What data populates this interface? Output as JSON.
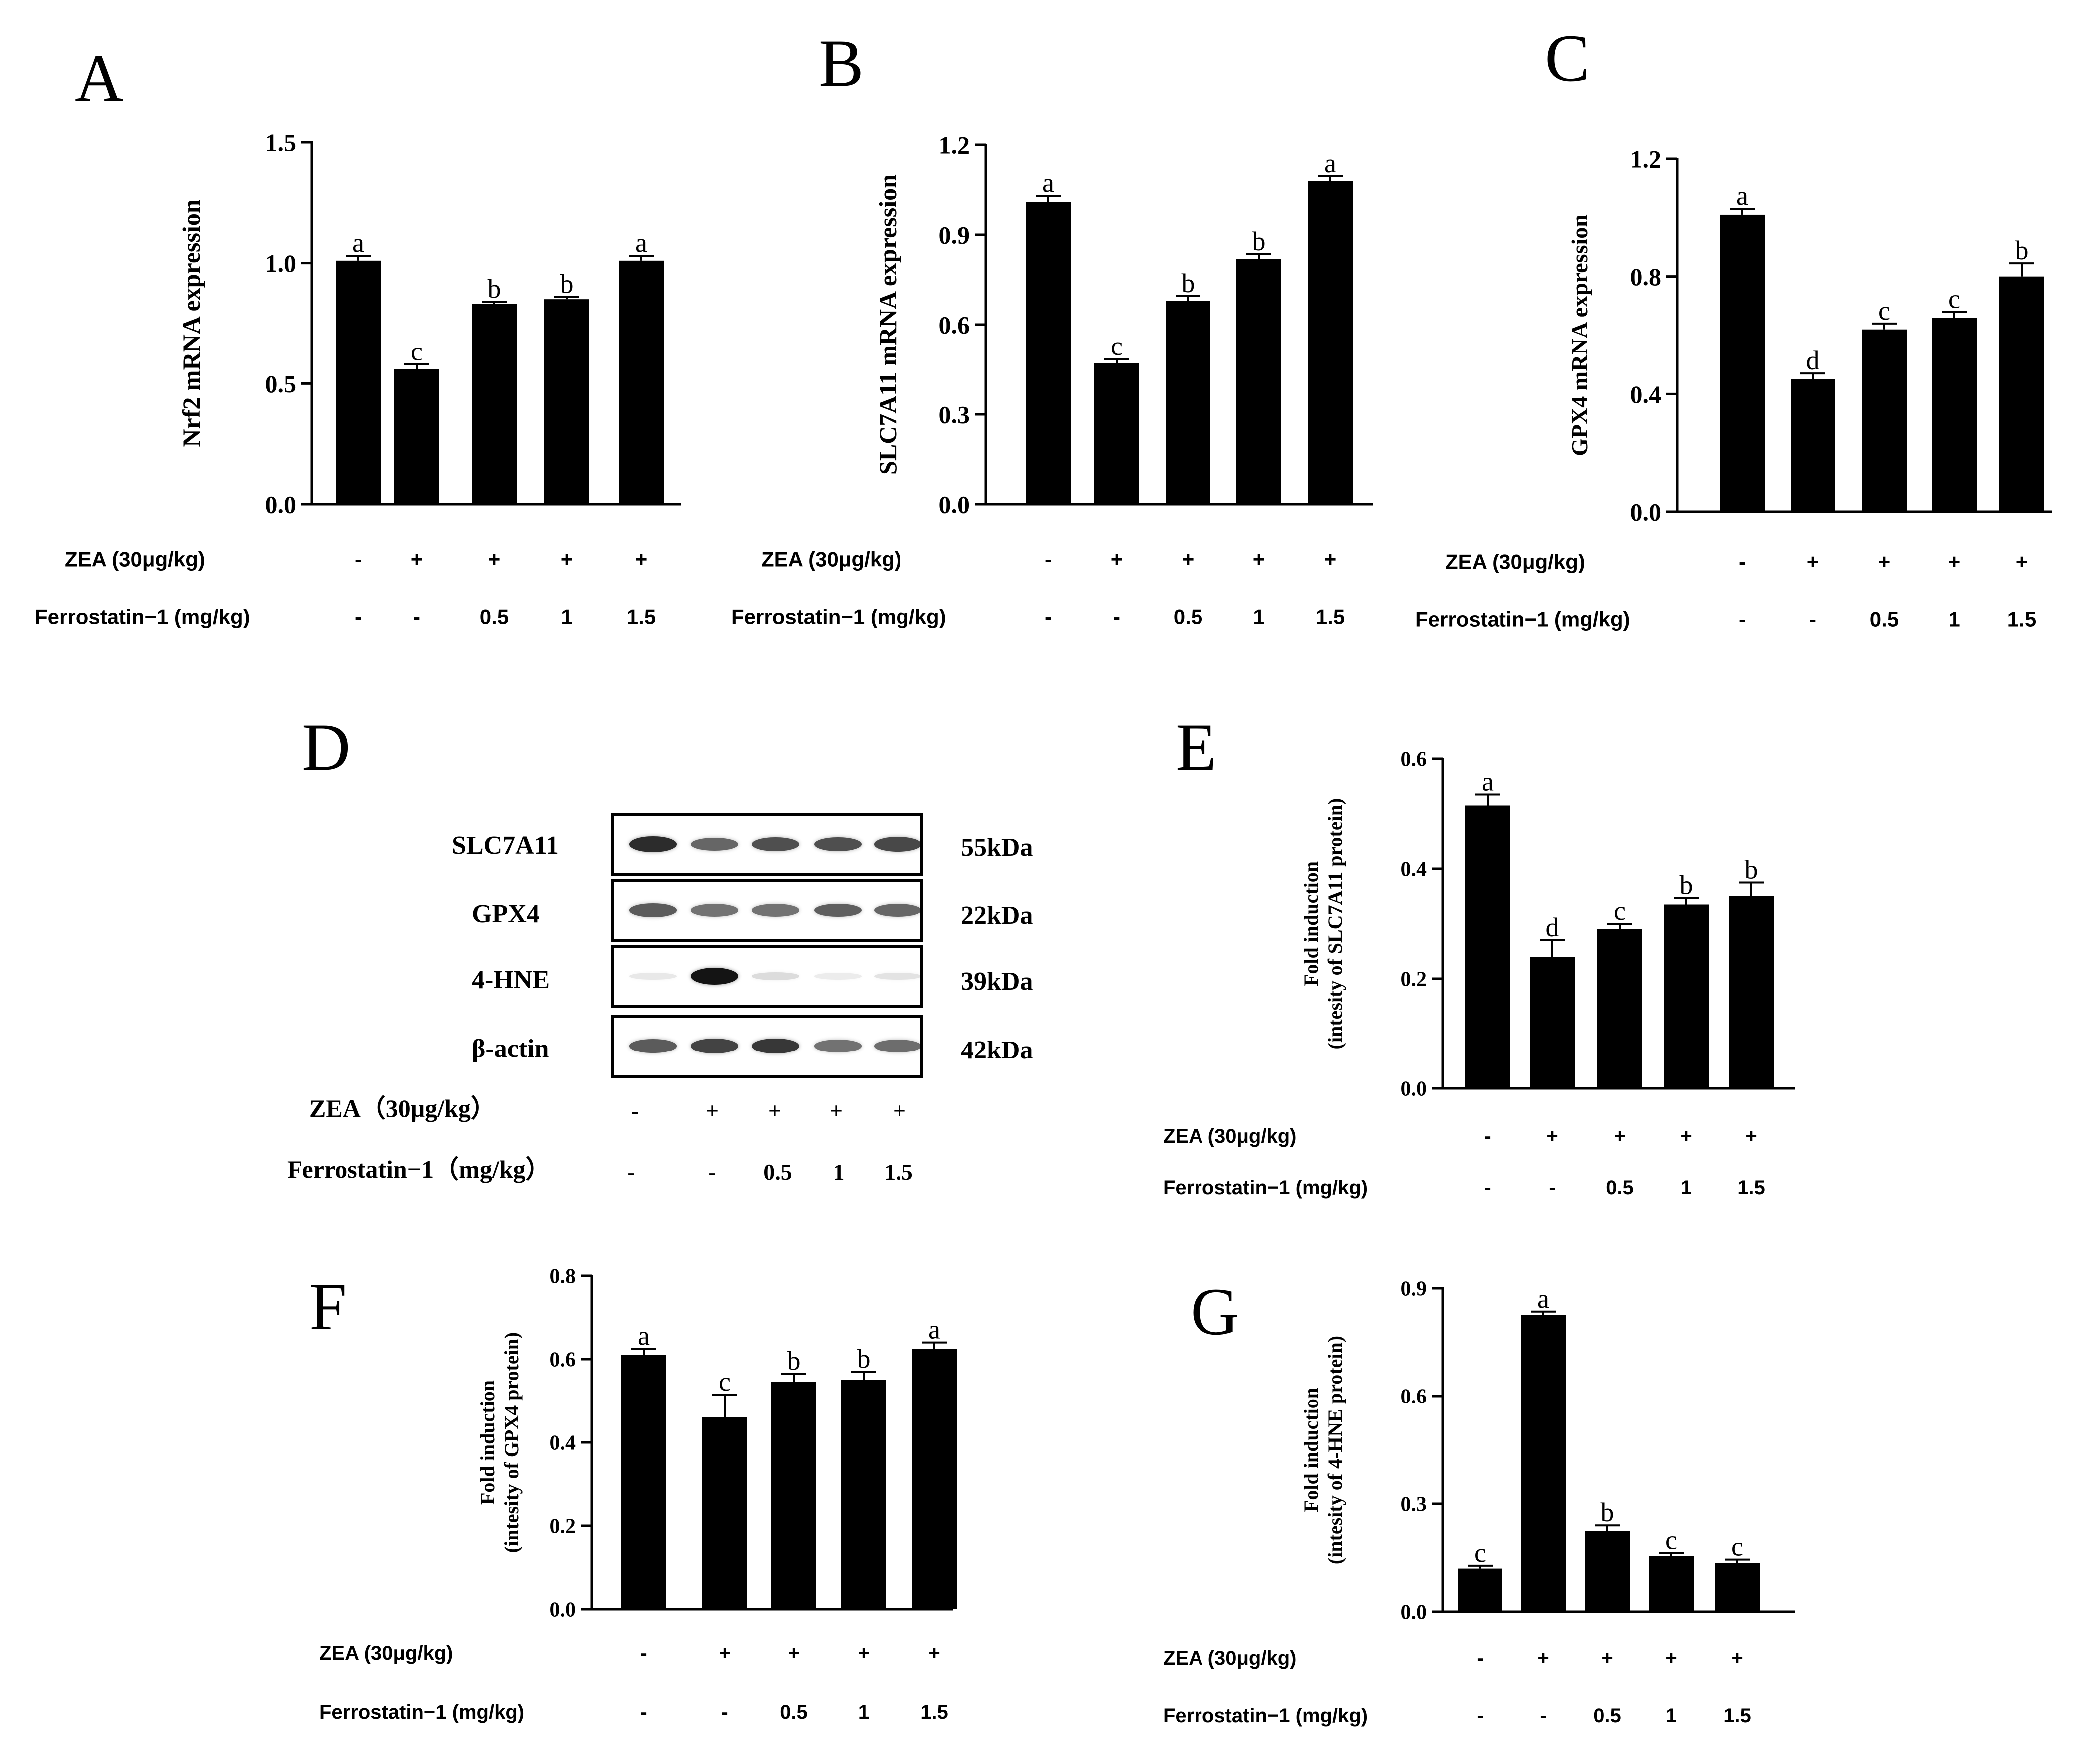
{
  "panel_letters": {
    "A": "A",
    "B": "B",
    "C": "C",
    "D": "D",
    "E": "E",
    "F": "F",
    "G": "G"
  },
  "conditions": {
    "zea_label": "ZEA (30μg/kg)",
    "ferro_label": "Ferrostatin−1 (mg/kg)",
    "zea_values": [
      "-",
      "+",
      "+",
      "+",
      "+"
    ],
    "ferro_values": [
      "-",
      "-",
      "0.5",
      "1",
      "1.5"
    ]
  },
  "chart_data": [
    {
      "id": "A",
      "type": "bar",
      "ylabel": "Nrf2 mRNA expression",
      "categories": [
        "1",
        "2",
        "3",
        "4",
        "5"
      ],
      "values": [
        1.01,
        0.56,
        0.83,
        0.85,
        1.01
      ],
      "errors": [
        0.02,
        0.02,
        0.01,
        0.01,
        0.02
      ],
      "letters": [
        "a",
        "c",
        "b",
        "b",
        "a"
      ],
      "ylim": [
        0,
        1.5
      ],
      "yticks": [
        "0.0",
        "0.5",
        "1.0",
        "1.5"
      ]
    },
    {
      "id": "B",
      "type": "bar",
      "ylabel": "SLC7A11 mRNA expression",
      "categories": [
        "1",
        "2",
        "3",
        "4",
        "5"
      ],
      "values": [
        1.01,
        0.47,
        0.68,
        0.82,
        1.08
      ],
      "errors": [
        0.02,
        0.015,
        0.015,
        0.015,
        0.015
      ],
      "letters": [
        "a",
        "c",
        "b",
        "b",
        "a"
      ],
      "ylim": [
        0,
        1.2
      ],
      "yticks": [
        "0.0",
        "0.3",
        "0.6",
        "0.9",
        "1.2"
      ]
    },
    {
      "id": "C",
      "type": "bar",
      "ylabel": "GPX4 mRNA expression",
      "categories": [
        "1",
        "2",
        "3",
        "4",
        "5"
      ],
      "values": [
        1.01,
        0.45,
        0.62,
        0.66,
        0.8
      ],
      "errors": [
        0.02,
        0.02,
        0.02,
        0.02,
        0.045
      ],
      "letters": [
        "a",
        "d",
        "c",
        "c",
        "b"
      ],
      "ylim": [
        0,
        1.2
      ],
      "yticks": [
        "0.0",
        "0.4",
        "0.8",
        "1.2"
      ]
    },
    {
      "id": "E",
      "type": "bar",
      "ylabel": [
        "Fold induction",
        "(intesity of SLC7A11 protein)"
      ],
      "categories": [
        "1",
        "2",
        "3",
        "4",
        "5"
      ],
      "values": [
        0.515,
        0.24,
        0.29,
        0.335,
        0.35
      ],
      "errors": [
        0.02,
        0.03,
        0.01,
        0.012,
        0.025
      ],
      "letters": [
        "a",
        "d",
        "c",
        "b",
        "b"
      ],
      "ylim": [
        0,
        0.6
      ],
      "yticks": [
        "0.0",
        "0.2",
        "0.4",
        "0.6"
      ]
    },
    {
      "id": "F",
      "type": "bar",
      "ylabel": [
        "Fold induction",
        "(intesity of GPX4 protein)"
      ],
      "categories": [
        "1",
        "2",
        "3",
        "4",
        "5"
      ],
      "values": [
        0.61,
        0.46,
        0.545,
        0.55,
        0.625
      ],
      "errors": [
        0.015,
        0.055,
        0.02,
        0.02,
        0.015
      ],
      "letters": [
        "a",
        "c",
        "b",
        "b",
        "a"
      ],
      "ylim": [
        0,
        0.8
      ],
      "yticks": [
        "0.0",
        "0.2",
        "0.4",
        "0.6",
        "0.8"
      ]
    },
    {
      "id": "G",
      "type": "bar",
      "ylabel": [
        "Fold induction",
        "(intesity of 4-HNE protein)"
      ],
      "categories": [
        "1",
        "2",
        "3",
        "4",
        "5"
      ],
      "values": [
        0.12,
        0.825,
        0.225,
        0.155,
        0.135
      ],
      "errors": [
        0.008,
        0.01,
        0.015,
        0.008,
        0.01
      ],
      "letters": [
        "c",
        "a",
        "b",
        "c",
        "c"
      ],
      "ylim": [
        0,
        0.9
      ],
      "yticks": [
        "0.0",
        "0.3",
        "0.6",
        "0.9"
      ]
    }
  ],
  "western_blot": {
    "proteins": [
      "SLC7A11",
      "GPX4",
      "4-HNE",
      "β-actin"
    ],
    "sizes": [
      "55kDa",
      "22kDa",
      "39kDa",
      "42kDa"
    ],
    "zea_label": "ZEA（30μg/kg）",
    "ferro_label": "Ferrostatin−1（mg/kg）",
    "zea_values": [
      "-",
      "+",
      "+",
      "+",
      "+"
    ],
    "ferro_values": [
      "-",
      "-",
      "0.5",
      "1",
      "1.5"
    ],
    "band_intensity": [
      [
        0.9,
        0.65,
        0.75,
        0.75,
        0.78
      ],
      [
        0.7,
        0.6,
        0.6,
        0.68,
        0.65
      ],
      [
        0.1,
        1.0,
        0.15,
        0.08,
        0.12
      ],
      [
        0.7,
        0.8,
        0.85,
        0.6,
        0.62
      ]
    ]
  }
}
